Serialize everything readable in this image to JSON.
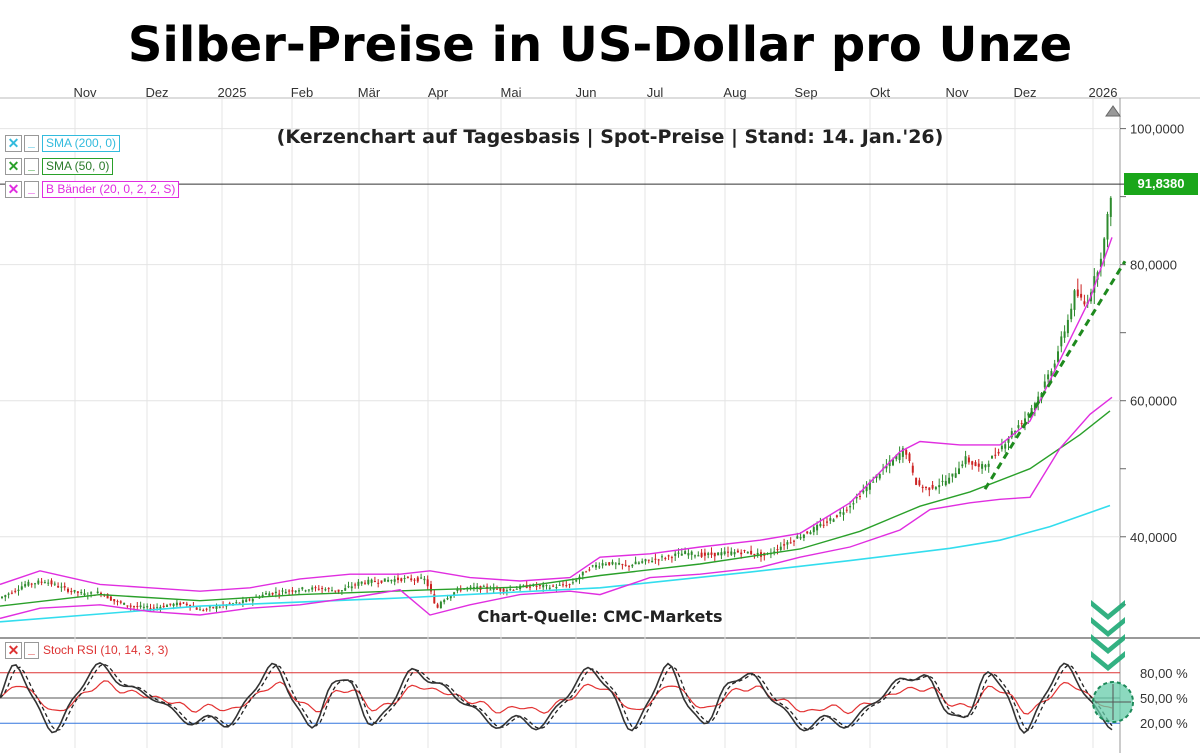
{
  "title": "Silber-Preise in US-Dollar pro Unze",
  "subtitle": "(Kerzenchart auf Tagesbasis | Spot-Preise | Stand: 14. Jan.'26)",
  "source": "Chart-Quelle: CMC-Markets",
  "legend": {
    "sma200": "SMA (200, 0)",
    "sma50": "SMA (50, 0)",
    "bb": "B Bänder (20, 0, 2, 2, S)",
    "rsi": "Stoch RSI (10, 14, 3, 3)"
  },
  "last_price_label": "91,8380",
  "colors": {
    "candle_up": "#2e8b2e",
    "candle_down": "#cc2222",
    "sma200": "#33ddee",
    "sma50": "#2aa02a",
    "bollinger": "#e02ee0",
    "price_badge": "#1aa61a",
    "rsi_k": "#333333",
    "rsi_d": "#e33333",
    "upper_band": "#dd3333",
    "lower_band": "#3377dd",
    "arrow": "#22aa77"
  },
  "chart_data": [
    {
      "type": "candlestick",
      "title": "Silber-Preise in US-Dollar pro Unze",
      "x_ticks": [
        "Nov",
        "Dez",
        "2025",
        "Feb",
        "Mär",
        "Apr",
        "Mai",
        "Jun",
        "Jul",
        "Aug",
        "Sep",
        "Okt",
        "Nov",
        "Dez",
        "2026"
      ],
      "y_ticks": [
        "100,0000",
        "80,0000",
        "60,0000",
        "40,0000"
      ],
      "ylim": [
        26,
        102
      ],
      "last_price": 91.838,
      "series_points": {
        "close": [
          [
            0,
            31
          ],
          [
            25,
            33
          ],
          [
            45,
            33.5
          ],
          [
            65,
            32.3
          ],
          [
            85,
            31.5
          ],
          [
            100,
            31.8
          ],
          [
            115,
            30.5
          ],
          [
            130,
            29.8
          ],
          [
            150,
            29.5
          ],
          [
            170,
            30
          ],
          [
            185,
            30.2
          ],
          [
            200,
            29.2
          ],
          [
            220,
            29.8
          ],
          [
            245,
            30.5
          ],
          [
            265,
            31.6
          ],
          [
            285,
            32
          ],
          [
            300,
            32.3
          ],
          [
            320,
            32.4
          ],
          [
            340,
            32
          ],
          [
            360,
            33.3
          ],
          [
            380,
            33.5
          ],
          [
            400,
            33.8
          ],
          [
            425,
            33.7
          ],
          [
            432,
            31.5
          ],
          [
            436,
            29
          ],
          [
            440,
            30.5
          ],
          [
            460,
            32.4
          ],
          [
            485,
            32.5
          ],
          [
            505,
            32.2
          ],
          [
            530,
            32.8
          ],
          [
            550,
            32.6
          ],
          [
            570,
            33
          ],
          [
            590,
            35.5
          ],
          [
            605,
            36.2
          ],
          [
            625,
            35.7
          ],
          [
            645,
            36.4
          ],
          [
            665,
            37
          ],
          [
            685,
            37.6
          ],
          [
            705,
            37.3
          ],
          [
            725,
            37.6
          ],
          [
            745,
            37.8
          ],
          [
            765,
            37.2
          ],
          [
            785,
            39
          ],
          [
            805,
            40.5
          ],
          [
            825,
            42
          ],
          [
            845,
            44
          ],
          [
            865,
            47
          ],
          [
            880,
            49.5
          ],
          [
            895,
            51.5
          ],
          [
            905,
            53
          ],
          [
            915,
            48
          ],
          [
            925,
            47
          ],
          [
            935,
            47.5
          ],
          [
            950,
            48.5
          ],
          [
            965,
            51.5
          ],
          [
            980,
            50
          ],
          [
            995,
            52
          ],
          [
            1010,
            55
          ],
          [
            1025,
            57.5
          ],
          [
            1040,
            61
          ],
          [
            1055,
            66
          ],
          [
            1068,
            72
          ],
          [
            1075,
            76
          ],
          [
            1085,
            74
          ],
          [
            1095,
            78
          ],
          [
            1105,
            84
          ],
          [
            1112,
            91.8
          ]
        ],
        "sma200": [
          [
            0,
            27.5
          ],
          [
            200,
            29.8
          ],
          [
            400,
            31
          ],
          [
            600,
            32.5
          ],
          [
            750,
            34.8
          ],
          [
            850,
            36.5
          ],
          [
            950,
            38.3
          ],
          [
            1000,
            39.5
          ],
          [
            1050,
            41.5
          ],
          [
            1110,
            44.6
          ]
        ],
        "sma50": [
          [
            0,
            29.8
          ],
          [
            100,
            31.5
          ],
          [
            200,
            30.6
          ],
          [
            300,
            31.5
          ],
          [
            430,
            32.2
          ],
          [
            520,
            32.6
          ],
          [
            600,
            34.3
          ],
          [
            700,
            36
          ],
          [
            800,
            38.2
          ],
          [
            860,
            40.8
          ],
          [
            920,
            44.5
          ],
          [
            970,
            46.6
          ],
          [
            1030,
            50
          ],
          [
            1080,
            55
          ],
          [
            1110,
            58.5
          ]
        ],
        "bb_upper": [
          [
            0,
            33
          ],
          [
            40,
            35
          ],
          [
            100,
            33
          ],
          [
            150,
            32.5
          ],
          [
            200,
            32
          ],
          [
            250,
            32.5
          ],
          [
            300,
            33.8
          ],
          [
            350,
            34.5
          ],
          [
            400,
            34.5
          ],
          [
            430,
            35
          ],
          [
            470,
            34
          ],
          [
            520,
            33.5
          ],
          [
            570,
            34
          ],
          [
            600,
            37
          ],
          [
            650,
            37.5
          ],
          [
            700,
            38.5
          ],
          [
            760,
            39.5
          ],
          [
            800,
            40.5
          ],
          [
            850,
            45
          ],
          [
            900,
            52.5
          ],
          [
            920,
            54
          ],
          [
            960,
            53.5
          ],
          [
            1000,
            53.5
          ],
          [
            1030,
            57
          ],
          [
            1060,
            66
          ],
          [
            1090,
            75
          ],
          [
            1112,
            84
          ]
        ],
        "bb_lower": [
          [
            0,
            28
          ],
          [
            40,
            29.5
          ],
          [
            100,
            30
          ],
          [
            150,
            29
          ],
          [
            200,
            28.5
          ],
          [
            250,
            29.5
          ],
          [
            300,
            30
          ],
          [
            350,
            31
          ],
          [
            400,
            32.2
          ],
          [
            430,
            28.5
          ],
          [
            470,
            30
          ],
          [
            520,
            31.5
          ],
          [
            570,
            32
          ],
          [
            600,
            31.5
          ],
          [
            650,
            34
          ],
          [
            700,
            34.5
          ],
          [
            760,
            35.5
          ],
          [
            800,
            37
          ],
          [
            850,
            38.5
          ],
          [
            900,
            41
          ],
          [
            930,
            44
          ],
          [
            970,
            45
          ],
          [
            1000,
            45.5
          ],
          [
            1030,
            45.8
          ],
          [
            1060,
            53
          ],
          [
            1090,
            58
          ],
          [
            1112,
            60.5
          ]
        ]
      }
    },
    {
      "type": "line",
      "title": "Stoch RSI (10, 14, 3, 3)",
      "y_ticks": [
        "80,00 %",
        "50,00 %",
        "20,00 %"
      ],
      "ylim": [
        0,
        100
      ],
      "reference_lines": [
        80,
        50,
        20
      ]
    }
  ]
}
